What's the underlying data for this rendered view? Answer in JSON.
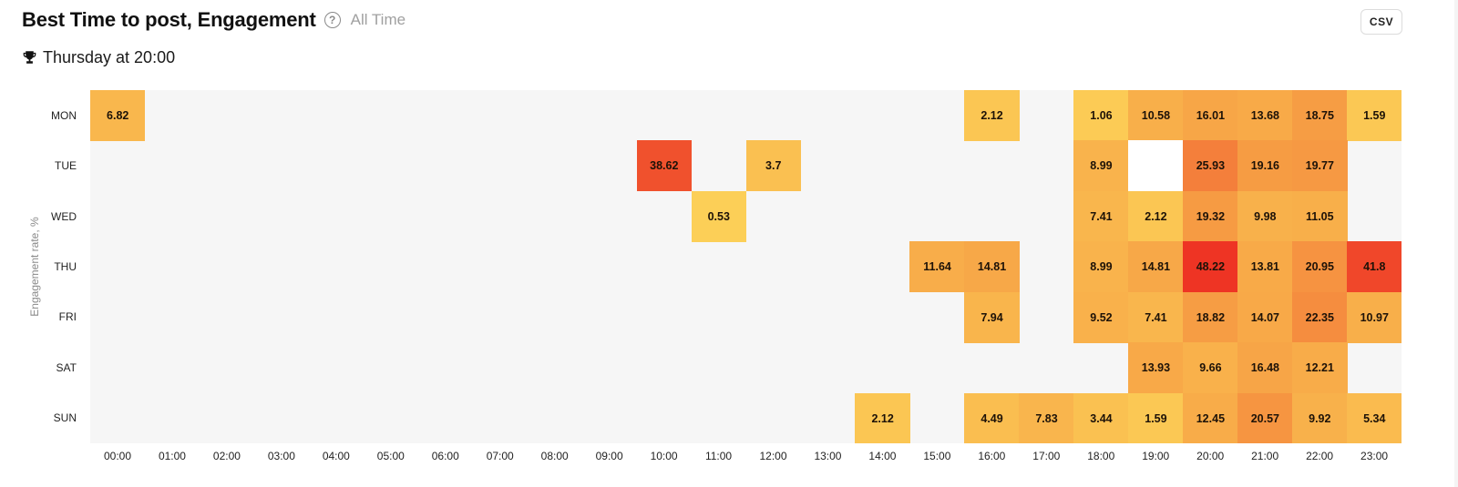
{
  "header": {
    "title": "Best Time to post, Engagement",
    "help_icon": "question-circle-icon",
    "period": "All Time",
    "csv_label": "CSV"
  },
  "best_time": {
    "icon": "trophy-icon",
    "text": "Thursday at 20:00"
  },
  "colors": {
    "background_empty": "#f6f6f6",
    "zero_cell": "#ffffff",
    "scale_low": "#fdd85a",
    "scale_mid": "#f7a446",
    "scale_high": "#ee3424"
  },
  "chart_data": {
    "type": "heatmap",
    "title": "Best Time to post, Engagement",
    "subtitle": "All Time",
    "annotation": "Thursday at 20:00",
    "xlabel": "",
    "ylabel": "Engagement rate, %",
    "x": [
      "00:00",
      "01:00",
      "02:00",
      "03:00",
      "04:00",
      "05:00",
      "06:00",
      "07:00",
      "08:00",
      "09:00",
      "10:00",
      "11:00",
      "12:00",
      "13:00",
      "14:00",
      "15:00",
      "16:00",
      "17:00",
      "18:00",
      "19:00",
      "20:00",
      "21:00",
      "22:00",
      "23:00"
    ],
    "y": [
      "MON",
      "TUE",
      "WED",
      "THU",
      "FRI",
      "SAT",
      "SUN"
    ],
    "values": [
      [
        6.82,
        null,
        null,
        null,
        null,
        null,
        null,
        null,
        null,
        null,
        null,
        null,
        null,
        null,
        null,
        null,
        2.12,
        null,
        1.06,
        10.58,
        16.01,
        13.68,
        18.75,
        1.59
      ],
      [
        null,
        null,
        null,
        null,
        null,
        null,
        null,
        null,
        null,
        null,
        38.62,
        null,
        3.7,
        null,
        null,
        null,
        null,
        null,
        8.99,
        0,
        25.93,
        19.16,
        19.77,
        null
      ],
      [
        null,
        null,
        null,
        null,
        null,
        null,
        null,
        null,
        null,
        null,
        null,
        0.53,
        null,
        null,
        null,
        null,
        null,
        null,
        7.41,
        2.12,
        19.32,
        9.98,
        11.05,
        null
      ],
      [
        null,
        null,
        null,
        null,
        null,
        null,
        null,
        null,
        null,
        null,
        null,
        null,
        null,
        null,
        null,
        11.64,
        14.81,
        null,
        8.99,
        14.81,
        48.22,
        13.81,
        20.95,
        41.8
      ],
      [
        null,
        null,
        null,
        null,
        null,
        null,
        null,
        null,
        null,
        null,
        null,
        null,
        null,
        null,
        null,
        null,
        7.94,
        null,
        9.52,
        7.41,
        18.82,
        14.07,
        22.35,
        10.97
      ],
      [
        null,
        null,
        null,
        null,
        null,
        null,
        null,
        null,
        null,
        null,
        null,
        null,
        null,
        null,
        null,
        null,
        null,
        null,
        null,
        13.93,
        9.66,
        16.48,
        12.21,
        null
      ],
      [
        null,
        null,
        null,
        null,
        null,
        null,
        null,
        null,
        null,
        null,
        null,
        null,
        null,
        null,
        2.12,
        null,
        4.49,
        7.83,
        3.44,
        1.59,
        12.45,
        20.57,
        9.92,
        5.34
      ]
    ],
    "value_range": [
      0,
      48.22
    ],
    "legend": "none"
  }
}
